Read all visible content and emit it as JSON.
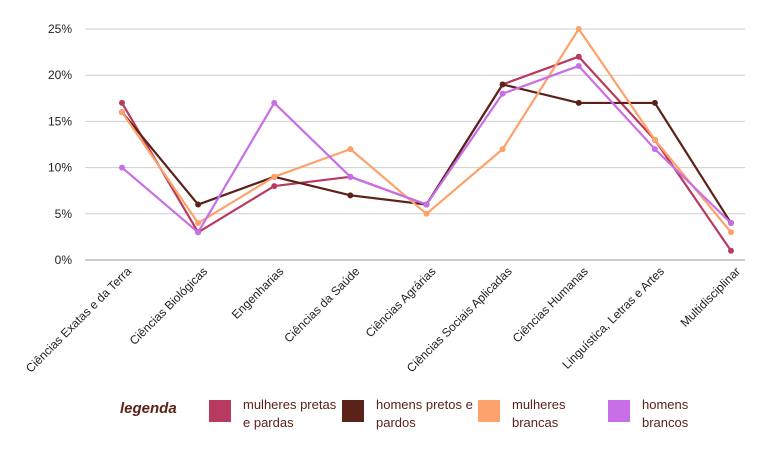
{
  "chart_data": {
    "type": "line",
    "categories": [
      "Ciências Exatas e da Terra",
      "Ciências Biológicas",
      "Engenharias",
      "Ciências da Saúde",
      "Ciências Agrárias",
      "Ciências Sociais Aplicadas",
      "Ciências Humanas",
      "Linguística, Letras e Artes",
      "Multidisciplinar"
    ],
    "y_ticks": [
      "0%",
      "5%",
      "10%",
      "15%",
      "20%",
      "25%"
    ],
    "ylim": [
      0,
      25
    ],
    "grid": true,
    "series": [
      {
        "name": "mulheres pretas e pardas",
        "color": "#b83a5e",
        "values": [
          17,
          3,
          8,
          9,
          6,
          19,
          22,
          13,
          1
        ]
      },
      {
        "name": "homens pretos e pardos",
        "color": "#5a2218",
        "values": [
          16,
          6,
          9,
          7,
          6,
          19,
          17,
          17,
          4
        ]
      },
      {
        "name": "mulheres brancas",
        "color": "#fda26b",
        "values": [
          16,
          4,
          9,
          12,
          5,
          12,
          25,
          13,
          3
        ]
      },
      {
        "name": "homens brancos",
        "color": "#c86ee6",
        "values": [
          10,
          3,
          17,
          9,
          6,
          18,
          21,
          12,
          4
        ]
      }
    ],
    "legend_title": "legenda"
  }
}
